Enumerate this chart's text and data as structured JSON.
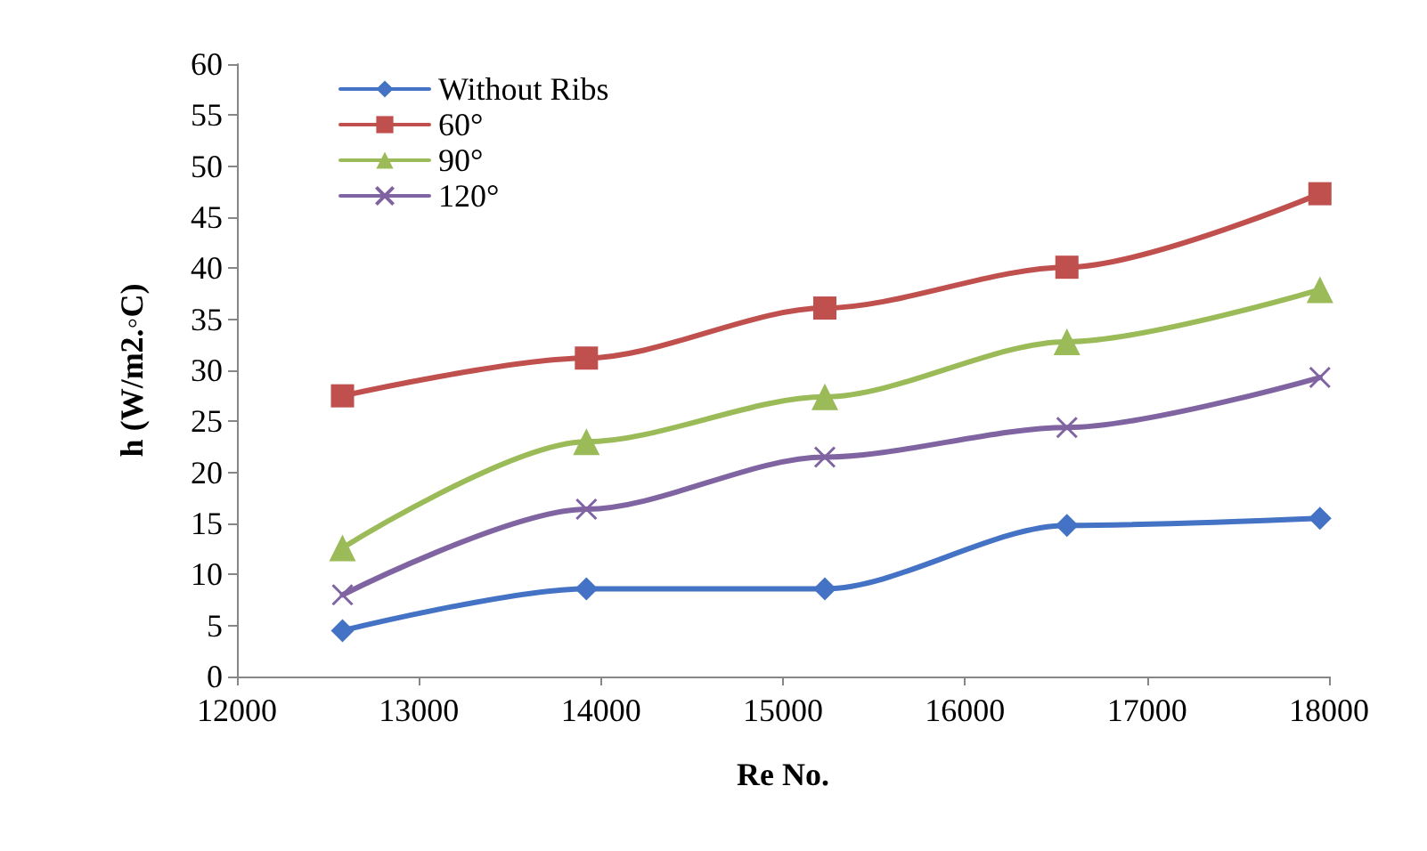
{
  "chart_data": {
    "type": "line",
    "xlabel": "Re No.",
    "ylabel": "h (W/m2.◦C)",
    "x": [
      12580,
      13920,
      15230,
      16560,
      17950
    ],
    "xlim": [
      12000,
      18000
    ],
    "xticks": [
      12000,
      13000,
      14000,
      15000,
      16000,
      17000,
      18000
    ],
    "ylim": [
      0,
      60
    ],
    "yticks": [
      0,
      5,
      10,
      15,
      20,
      25,
      30,
      35,
      40,
      45,
      50,
      55,
      60
    ],
    "grid": false,
    "legend": "top left",
    "line_style": "solid",
    "series": [
      {
        "name": "Without Ribs",
        "color": "#4472c4",
        "marker": "diamond",
        "values": [
          4.5,
          8.6,
          8.6,
          14.8,
          15.5
        ]
      },
      {
        "name": "60°",
        "color": "#c0504d",
        "marker": "square",
        "values": [
          27.5,
          31.2,
          36.1,
          40.1,
          47.3
        ]
      },
      {
        "name": "90°",
        "color": "#9bbb59",
        "marker": "triangle",
        "values": [
          12.6,
          23.0,
          27.4,
          32.8,
          37.9
        ]
      },
      {
        "name": "120°",
        "color": "#8064a2",
        "marker": "cross",
        "values": [
          8.0,
          16.4,
          21.5,
          24.4,
          29.3
        ]
      }
    ]
  }
}
